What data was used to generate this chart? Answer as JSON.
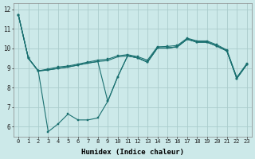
{
  "xlabel": "Humidex (Indice chaleur)",
  "background_color": "#cce9e9",
  "grid_color": "#aacccc",
  "line_color": "#1a7070",
  "xlim": [
    -0.5,
    23.5
  ],
  "ylim": [
    5.5,
    12.3
  ],
  "yticks": [
    6,
    7,
    8,
    9,
    10,
    11,
    12
  ],
  "xticks": [
    0,
    1,
    2,
    3,
    4,
    5,
    6,
    7,
    8,
    9,
    10,
    11,
    12,
    13,
    14,
    15,
    16,
    17,
    18,
    19,
    20,
    21,
    22,
    23
  ],
  "s1": [
    11.7,
    9.5,
    8.85,
    8.95,
    9.05,
    9.1,
    9.2,
    9.3,
    9.4,
    9.45,
    9.62,
    9.68,
    9.58,
    9.4,
    10.08,
    10.1,
    10.15,
    10.52,
    10.38,
    10.38,
    10.18,
    9.92,
    8.52,
    9.22
  ],
  "s2": [
    11.7,
    9.5,
    8.85,
    8.9,
    8.98,
    9.05,
    9.15,
    9.25,
    9.33,
    9.38,
    9.57,
    9.62,
    9.52,
    9.3,
    10.02,
    10.02,
    10.08,
    10.47,
    10.32,
    10.32,
    10.12,
    9.87,
    8.47,
    9.17
  ],
  "s3": [
    11.7,
    9.5,
    8.85,
    8.9,
    8.98,
    9.05,
    9.15,
    9.25,
    9.33,
    7.3,
    8.55,
    9.62,
    9.52,
    9.3,
    10.02,
    10.02,
    10.08,
    10.47,
    10.32,
    10.32,
    10.12,
    9.87,
    8.47,
    9.17
  ],
  "s4": [
    11.7,
    9.5,
    8.85,
    5.75,
    6.15,
    6.65,
    6.35,
    6.35,
    6.45,
    7.3,
    8.55,
    9.62,
    9.52,
    9.3,
    10.02,
    10.02,
    10.08,
    10.47,
    10.32,
    10.32,
    10.12,
    9.87,
    8.47,
    9.17
  ]
}
